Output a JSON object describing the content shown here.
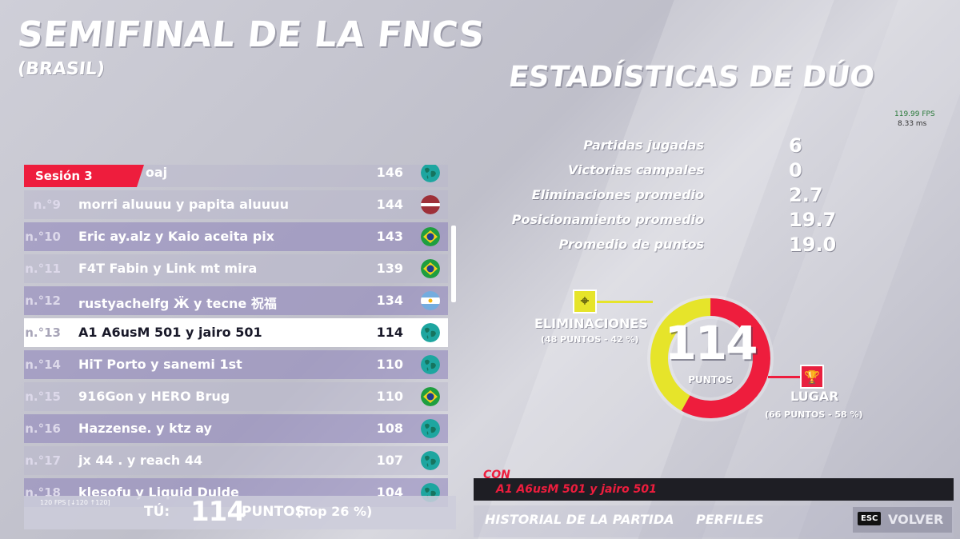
{
  "header": {
    "title": "SEMIFINAL DE LA FNCS",
    "subtitle": "(BRASIL)"
  },
  "stats": {
    "title": "ESTADÍSTICAS DE DÚO",
    "rows": [
      {
        "label": "Partidas jugadas",
        "value": "6"
      },
      {
        "label": "Victorias campales",
        "value": "0"
      },
      {
        "label": "Eliminaciones promedio",
        "value": "2.7"
      },
      {
        "label": "Posicionamiento promedio",
        "value": "19.7"
      },
      {
        "label": "Promedio de puntos",
        "value": "19.0"
      }
    ]
  },
  "perf": {
    "fps": "119.99 FPS",
    "ms": "8.33 ms"
  },
  "donut": {
    "total": "114",
    "unit": "PUNTOS",
    "elim_fraction": 0.42,
    "place_fraction": 0.58,
    "elim_color": "#e6e42a",
    "place_color": "#ee1d3d",
    "elim_label": "ELIMINACIONES",
    "elim_sub": "(48 PUNTOS - 42 %)",
    "place_label": "LUGAR",
    "place_sub": "(66 PUNTOS - 58 %)"
  },
  "board": {
    "session": "Sesión 3",
    "rows": [
      {
        "rank": "",
        "name": "y Carrita oaj",
        "pts": "146",
        "flag": "globe",
        "style": "norm"
      },
      {
        "rank": "n.°9",
        "name": "morri aluuuu y papita aluuuu",
        "pts": "144",
        "flag": "latvia",
        "style": "norm"
      },
      {
        "rank": "n.°10",
        "name": "Eric ay.alz y Kaio aceita pix",
        "pts": "143",
        "flag": "brazil",
        "style": "alt"
      },
      {
        "rank": "n.°11",
        "name": "F4T Fabin y Link mt mira",
        "pts": "139",
        "flag": "brazil",
        "style": "norm"
      },
      {
        "rank": "n.°12",
        "name": "rustyachelfg Ӝ y tecne 祝福",
        "pts": "134",
        "flag": "argentina",
        "style": "alt"
      },
      {
        "rank": "n.°13",
        "name": "A1 A6usM 501 y jairo 501",
        "pts": "114",
        "flag": "globe",
        "style": "me"
      },
      {
        "rank": "n.°14",
        "name": "HiT Porto y sanemi 1st",
        "pts": "110",
        "flag": "globe",
        "style": "alt"
      },
      {
        "rank": "n.°15",
        "name": "916Gon y HERO Brug",
        "pts": "110",
        "flag": "brazil",
        "style": "norm"
      },
      {
        "rank": "n.°16",
        "name": "Hazzense. y ktz ay",
        "pts": "108",
        "flag": "globe",
        "style": "alt"
      },
      {
        "rank": "n.°17",
        "name": "jx 44 . y reach 44",
        "pts": "107",
        "flag": "globe",
        "style": "norm"
      },
      {
        "rank": "n.°18",
        "name": "klesofu y Liquid Dulde",
        "pts": "104",
        "flag": "globe",
        "style": "alt"
      }
    ],
    "flag_colors": {
      "latvia": "#9e3039",
      "brazil": "#1f9e3f",
      "brazil_diamond": "#f4d21c",
      "brazil_globe": "#1e3d8f",
      "argentina": "#74acdf",
      "globe_water": "#1ea6a0",
      "globe_land": "#16745f"
    }
  },
  "you": {
    "label": "TÚ:",
    "points": "114",
    "unit": "PUNTOS",
    "top": "(Top 26 %)",
    "fps": "120 FPS [↓120 ↑120]"
  },
  "teammate": {
    "label": "CON",
    "name": "A1 A6usM 501 y jairo 501"
  },
  "nav": {
    "history": "HISTORIAL DE LA PARTIDA",
    "profiles": "PERFILES",
    "esc": "ESC",
    "back": "VOLVER"
  }
}
